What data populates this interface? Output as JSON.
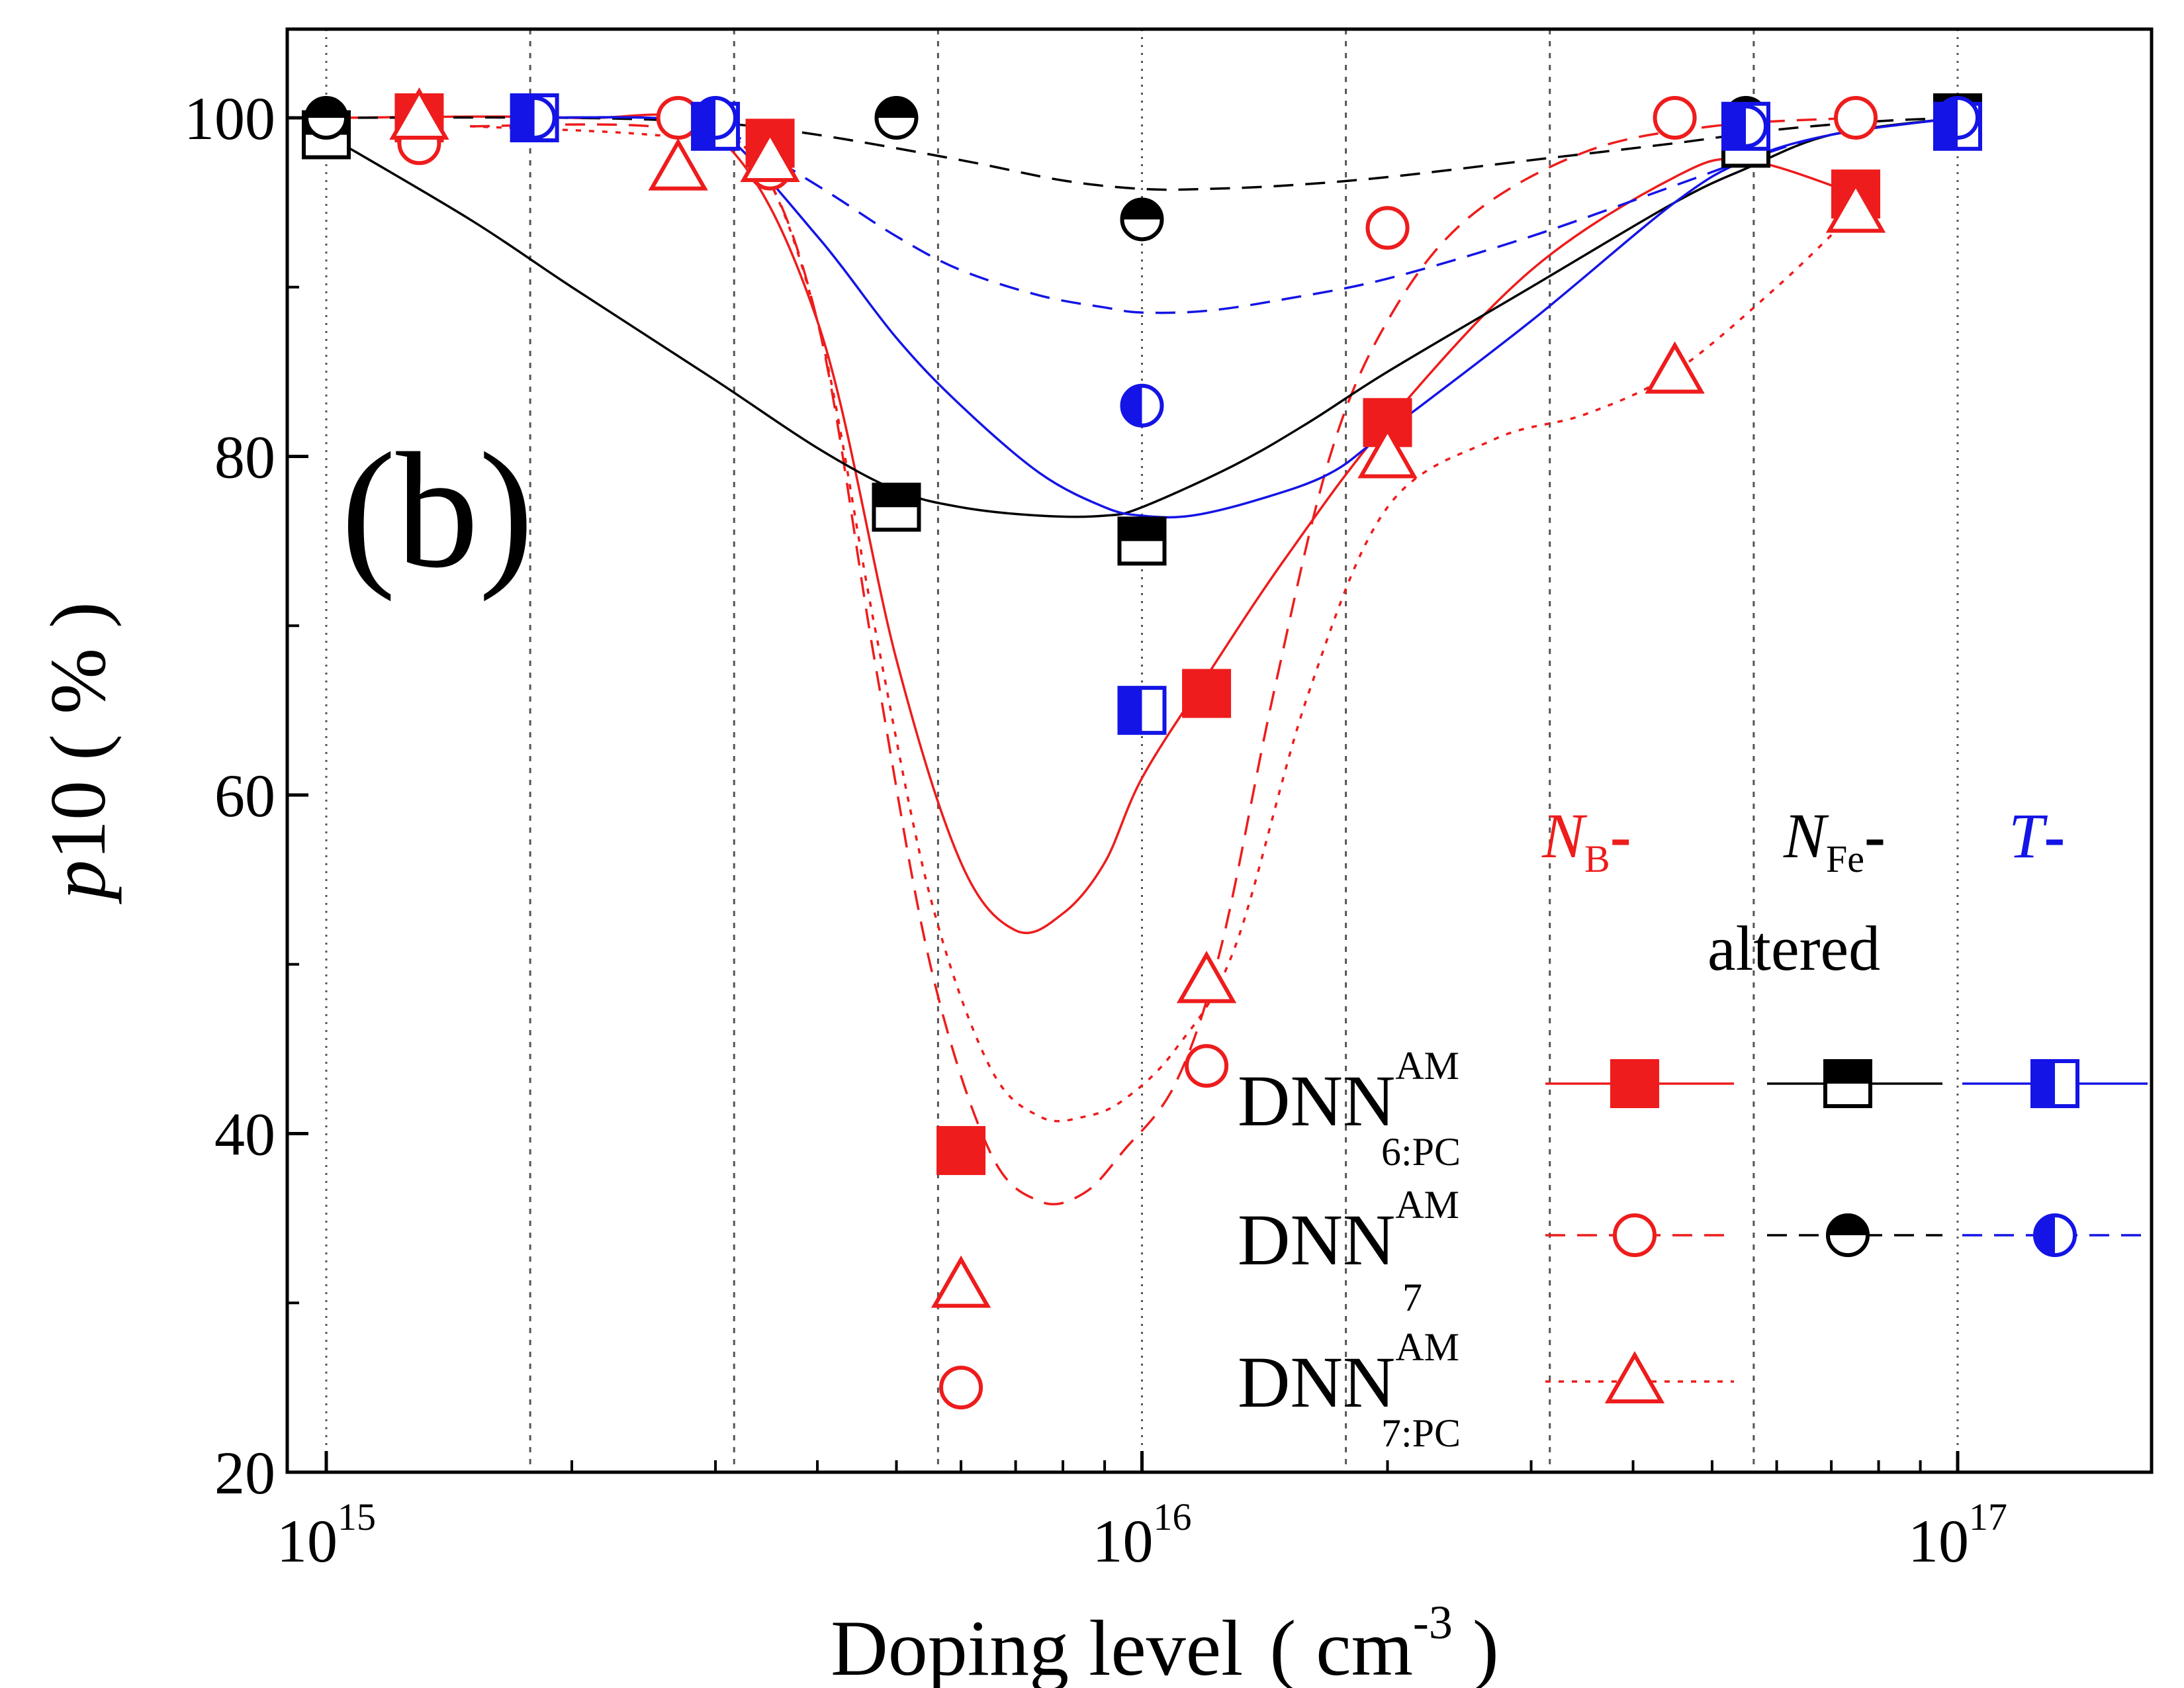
{
  "chart_data": {
    "type": "scatter",
    "panel_label": "(b)",
    "xlabel": {
      "main": "Doping level",
      "unit_open": "( cm",
      "unit_exp": "-3",
      "unit_close": ")"
    },
    "ylabel": {
      "var": "p",
      "main": "10",
      "unit": "( % )"
    },
    "x_scale": "log",
    "xlim": [
      900000000000000.0,
      1.25e+17
    ],
    "ylim": [
      20,
      105
    ],
    "x_ticks": [
      {
        "value": 1000000000000000.0,
        "base": "10",
        "exp": "15"
      },
      {
        "value": 1e+16,
        "base": "10",
        "exp": "16"
      },
      {
        "value": 1e+17,
        "base": "10",
        "exp": "17"
      }
    ],
    "y_ticks": [
      20,
      40,
      60,
      80,
      100
    ],
    "grid": "vertical-dotted",
    "legend": {
      "position": "bottom-right",
      "header": {
        "nb": {
          "sym": "N",
          "sub": "B",
          "dash": "-"
        },
        "nfe": {
          "sym": "N",
          "sub": "Fe",
          "dash": "-"
        },
        "t": {
          "sym": "T",
          "dash": "-"
        },
        "altered": "altered"
      },
      "rows": [
        {
          "main": "DNN",
          "sup": "AM",
          "sub": "6:PC"
        },
        {
          "main": "DNN",
          "sup": "AM",
          "sub": "7"
        },
        {
          "main": "DNN",
          "sup": "AM",
          "sub": "7:PC"
        }
      ]
    },
    "colors": {
      "NB": "#ee1c1c",
      "NFe": "#000000",
      "T": "#1414e6"
    },
    "series": [
      {
        "model": "DNN 6:PC",
        "group": "NB",
        "marker": "square-filled",
        "line": "solid",
        "x": [
          1300000000000000.0,
          3500000000000000.0,
          6000000000000000.0,
          1.2e+16,
          2e+16,
          7.5e+16
        ],
        "y": [
          100,
          98.5,
          39,
          66,
          82,
          95.5
        ]
      },
      {
        "model": "DNN 7",
        "group": "NB",
        "marker": "circle-open",
        "line": "dashed",
        "x": [
          1300000000000000.0,
          2700000000000000.0,
          3500000000000000.0,
          6000000000000000.0,
          1.2e+16,
          2e+16,
          4.5e+16,
          7.5e+16
        ],
        "y": [
          98.5,
          100,
          97,
          25,
          44,
          93.5,
          100,
          100
        ]
      },
      {
        "model": "DNN 7:PC",
        "group": "NB",
        "marker": "triangle-open",
        "line": "dotted",
        "x": [
          1300000000000000.0,
          2700000000000000.0,
          3500000000000000.0,
          6000000000000000.0,
          1.2e+16,
          2e+16,
          4.5e+16,
          7.5e+16
        ],
        "y": [
          100,
          97,
          97.5,
          31,
          49,
          80,
          85,
          94.5
        ]
      },
      {
        "model": "DNN 6:PC",
        "group": "NFe",
        "marker": "square-half-top",
        "line": "solid",
        "x": [
          1000000000000000.0,
          5000000000000000.0,
          1e+16,
          5.5e+16,
          1e+17
        ],
        "y": [
          99,
          77,
          75,
          98.5,
          100
        ]
      },
      {
        "model": "DNN 7",
        "group": "NFe",
        "marker": "circle-half-top",
        "line": "dashed",
        "x": [
          1000000000000000.0,
          5000000000000000.0,
          1e+16,
          5.5e+16,
          1e+17
        ],
        "y": [
          100,
          100,
          94,
          100,
          100
        ]
      },
      {
        "model": "DNN 6:PC",
        "group": "T",
        "marker": "square-half-left",
        "line": "solid",
        "x": [
          1800000000000000.0,
          3000000000000000.0,
          1e+16,
          5.5e+16,
          1e+17
        ],
        "y": [
          100,
          99.5,
          65,
          99.5,
          99.5
        ]
      },
      {
        "model": "DNN 7",
        "group": "T",
        "marker": "circle-half-left",
        "line": "dashed",
        "x": [
          1800000000000000.0,
          3000000000000000.0,
          1e+16,
          5.5e+16,
          1e+17
        ],
        "y": [
          100,
          100,
          83,
          99.5,
          100
        ]
      }
    ],
    "fit_curves": [
      {
        "group": "NB",
        "line": "solid",
        "x": [
          1000000000000000.0,
          2000000000000000.0,
          3000000000000000.0,
          4000000000000000.0,
          5000000000000000.0,
          6000000000000000.0,
          7000000000000000.0,
          8000000000000000.0,
          9000000000000000.0,
          1e+16,
          1.2e+16,
          1.5e+16,
          2e+16,
          3e+16,
          4.5e+16,
          5.5e+16,
          7.5e+16
        ],
        "y": [
          100,
          100,
          99,
          88,
          68,
          56,
          52,
          53,
          56,
          61,
          67,
          74,
          82,
          91,
          96.5,
          97.5,
          95.5
        ]
      },
      {
        "group": "NB",
        "line": "dashed",
        "x": [
          1500000000000000.0,
          2500000000000000.0,
          3300000000000000.0,
          4000000000000000.0,
          4700000000000000.0,
          5500000000000000.0,
          6500000000000000.0,
          7500000000000000.0,
          8500000000000000.0,
          9500000000000000.0,
          1.1e+16,
          1.25e+16,
          1.45e+16,
          1.7e+16,
          2e+16,
          2.5e+16,
          3.5e+16,
          5e+16,
          7.5e+16
        ],
        "y": [
          99.5,
          99.5,
          98,
          88,
          68,
          50,
          39,
          36,
          36.5,
          39,
          43,
          51,
          66,
          80,
          88,
          94,
          98,
          99.5,
          100
        ]
      },
      {
        "group": "NB",
        "line": "dotted",
        "x": [
          1500000000000000.0,
          2500000000000000.0,
          3300000000000000.0,
          4000000000000000.0,
          4700000000000000.0,
          5500000000000000.0,
          6500000000000000.0,
          7500000000000000.0,
          8500000000000000.0,
          9500000000000000.0,
          1.1e+16,
          1.3e+16,
          1.6e+16,
          2e+16,
          2.7e+16,
          3.5e+16,
          4.5e+16,
          6e+16,
          7.5e+16
        ],
        "y": [
          99.5,
          99,
          98,
          88,
          70,
          54,
          44,
          41,
          41,
          42,
          45,
          51,
          66,
          77,
          81,
          82.5,
          85,
          90,
          94.5
        ]
      },
      {
        "group": "NFe",
        "line": "solid",
        "x": [
          1000000000000000.0,
          1500000000000000.0,
          2000000000000000.0,
          3000000000000000.0,
          4000000000000000.0,
          5000000000000000.0,
          6000000000000000.0,
          7500000000000000.0,
          9000000000000000.0,
          1e+16,
          1.3e+16,
          1.6e+16,
          2e+16,
          3e+16,
          4.5e+16,
          5.5e+16,
          7e+16,
          1e+17
        ],
        "y": [
          99,
          94,
          90,
          84.5,
          80.5,
          78,
          77,
          76.5,
          76.5,
          77,
          79.5,
          82,
          85,
          90,
          95,
          97,
          99,
          100
        ]
      },
      {
        "group": "NFe",
        "line": "dashed",
        "x": [
          1000000000000000.0,
          2000000000000000.0,
          3000000000000000.0,
          4000000000000000.0,
          6000000000000000.0,
          8000000000000000.0,
          1e+16,
          1.2e+16,
          1.5e+16,
          2e+16,
          3e+16,
          4.5e+16,
          6e+16,
          8e+16,
          1e+17
        ],
        "y": [
          100,
          100,
          99.7,
          99,
          97.5,
          96.3,
          95.8,
          95.8,
          96,
          96.5,
          97.5,
          98.5,
          99.3,
          99.8,
          100
        ]
      },
      {
        "group": "T",
        "line": "solid",
        "x": [
          1800000000000000.0,
          2500000000000000.0,
          3000000000000000.0,
          4000000000000000.0,
          5000000000000000.0,
          6000000000000000.0,
          7500000000000000.0,
          9000000000000000.0,
          1e+16,
          1.15e+16,
          1.4e+16,
          1.7e+16,
          2e+16,
          3e+16,
          4.5e+16,
          5.5e+16,
          7e+16,
          1e+17
        ],
        "y": [
          100,
          100,
          99.5,
          93,
          87,
          83,
          79,
          77,
          76.5,
          76.5,
          77.5,
          79,
          81.5,
          88,
          95,
          97.5,
          99,
          100
        ]
      },
      {
        "group": "T",
        "line": "dashed",
        "x": [
          1800000000000000.0,
          2500000000000000.0,
          3000000000000000.0,
          4000000000000000.0,
          5000000000000000.0,
          6000000000000000.0,
          7500000000000000.0,
          9000000000000000.0,
          1e+16,
          1.2e+16,
          1.5e+16,
          2e+16,
          3e+16,
          4.5e+16,
          5.5e+16,
          7e+16,
          1e+17
        ],
        "y": [
          100,
          100,
          99.5,
          96,
          93,
          91,
          89.5,
          88.8,
          88.5,
          88.6,
          89.3,
          90.5,
          93,
          96,
          97.5,
          99,
          100
        ]
      }
    ]
  }
}
